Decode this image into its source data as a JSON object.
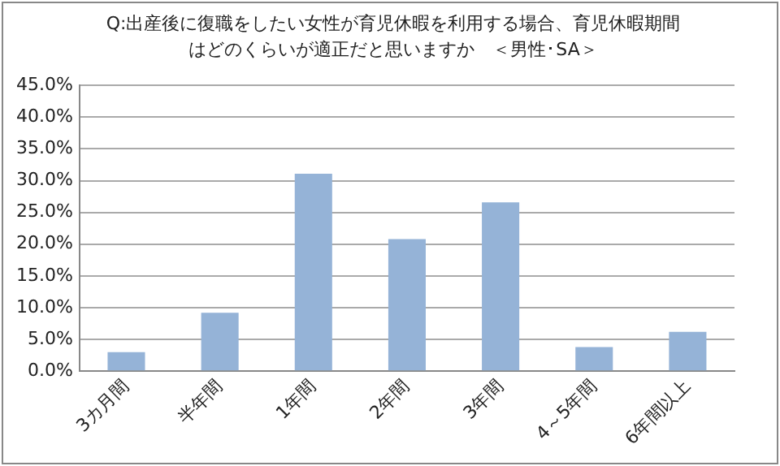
{
  "chart_data": {
    "type": "bar",
    "title": "Q:出産後に復職をしたい女性が育児休暇を利用する場合、育児休暇期間はどのくらいが適正だと思いますか　＜男性･SA＞",
    "categories": [
      "3カ月間",
      "半年間",
      "1年間",
      "2年間",
      "3年間",
      "4～5年間",
      "6年間以上"
    ],
    "values": [
      3.0,
      9.2,
      31.1,
      20.8,
      26.6,
      3.8,
      6.2
    ],
    "color": "#95b3d7",
    "ylim": [
      0,
      45
    ],
    "yticks": [
      {
        "value": 0,
        "label": "0.0%"
      },
      {
        "value": 5,
        "label": "5.0%"
      },
      {
        "value": 10,
        "label": "10.0%"
      },
      {
        "value": 15,
        "label": "15.0%"
      },
      {
        "value": 20,
        "label": "20.0%"
      },
      {
        "value": 25,
        "label": "25.0%"
      },
      {
        "value": 30,
        "label": "30.0%"
      },
      {
        "value": 35,
        "label": "35.0%"
      },
      {
        "value": 40,
        "label": "40.0%"
      },
      {
        "value": 45,
        "label": "45.0%"
      }
    ],
    "grid": "y"
  }
}
